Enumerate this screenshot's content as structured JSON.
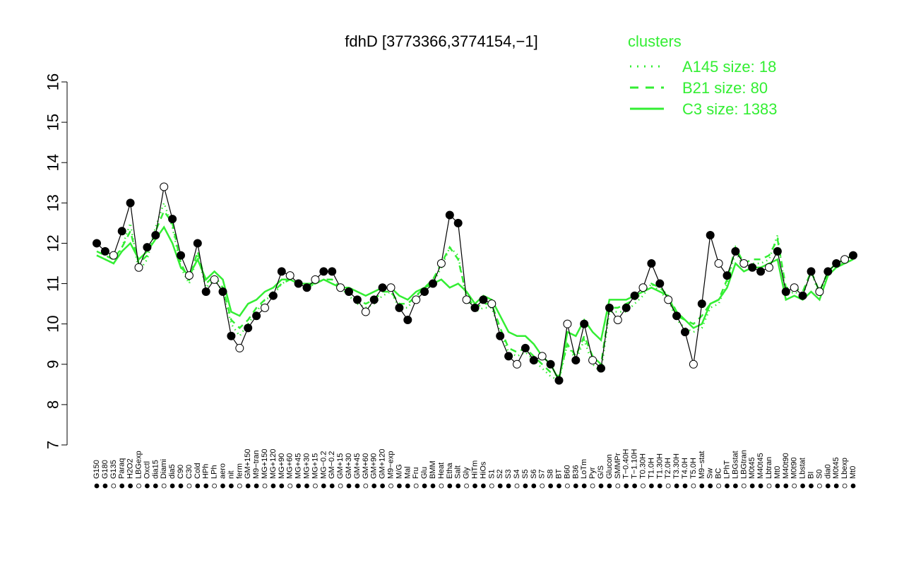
{
  "chart_data": {
    "type": "line",
    "title": "fdhD [3773366,3774154,−1]",
    "ylim": [
      7,
      16
    ],
    "yticks": [
      7,
      8,
      9,
      10,
      11,
      12,
      13,
      14,
      15,
      16
    ],
    "xlabels": [
      "G150",
      "G180",
      "G135",
      "Paraq",
      "H2O2",
      "LBGexp",
      "Oxctl",
      "dia15",
      "Diami",
      "dia5",
      "C90",
      "C30",
      "Cold",
      "HPh",
      "LPh",
      "aero",
      "nit",
      "ferm",
      "GM+150",
      "M9−tran",
      "MG+150",
      "MG+120",
      "MG+90",
      "MG+60",
      "MG+45",
      "MG+30",
      "MG+15",
      "MG−0.2",
      "GM−0.2",
      "GM+15",
      "GM+30",
      "GM+45",
      "GM+60",
      "GM+90",
      "GM+120",
      "M9−exp",
      "M/G",
      "Mal",
      "Fru",
      "Glu",
      "BMM",
      "Heat",
      "Etha",
      "Salt",
      "Gly",
      "HiTm",
      "HiOs",
      "S1",
      "S2",
      "S3",
      "S4",
      "S5",
      "S6",
      "S7",
      "S8",
      "BT",
      "B60",
      "B36",
      "LoTm",
      "Pyr",
      "G/S",
      "Glucon",
      "SMMPr",
      "T−0.40H",
      "T−1.10H",
      "T0.30H",
      "T1.0H",
      "T1.30H",
      "T2.0H",
      "T3.30H",
      "T4.0H",
      "T5.0H",
      "M9−stat",
      "Sw",
      "BC",
      "LPhT",
      "LBGstat",
      "LBGtran",
      "M0t45",
      "M40t45",
      "Lbtran",
      "Mt0",
      "M40t90",
      "M0t90",
      "Lbstat",
      "BI",
      "S0",
      "dia0",
      "M0t45",
      "Lbexp",
      "Mt0"
    ],
    "series": [
      {
        "name": "A145 size: 18",
        "style": "dotted",
        "color": "#33ee33",
        "y": [
          11.7,
          11.6,
          11.5,
          11.9,
          12.5,
          11.3,
          11.6,
          12.4,
          13.0,
          12.4,
          11.4,
          11.0,
          11.7,
          10.9,
          11.1,
          10.8,
          10.0,
          9.7,
          10.0,
          10.3,
          10.6,
          10.7,
          11.0,
          11.1,
          11.0,
          10.9,
          11.0,
          11.1,
          11.0,
          10.9,
          10.7,
          10.5,
          10.4,
          10.5,
          10.7,
          10.8,
          10.4,
          10.4,
          10.7,
          10.8,
          11.0,
          11.4,
          11.9,
          11.7,
          10.6,
          10.3,
          10.4,
          10.4,
          9.8,
          9.3,
          9.2,
          9.3,
          9.1,
          8.9,
          8.7,
          8.6,
          9.5,
          9.1,
          9.6,
          9.0,
          8.8,
          10.3,
          10.3,
          10.3,
          10.5,
          10.7,
          11.0,
          10.8,
          10.6,
          10.1,
          9.9,
          9.8,
          9.9,
          10.4,
          10.5,
          11.0,
          11.8,
          11.4,
          11.5,
          11.5,
          11.6,
          12.2,
          10.7,
          10.8,
          10.7,
          11.3,
          10.7,
          11.3,
          11.5,
          11.5,
          11.6
        ]
      },
      {
        "name": "B21 size: 80",
        "style": "dashed",
        "color": "#33ee33",
        "y": [
          11.8,
          11.7,
          11.6,
          11.9,
          12.3,
          11.5,
          11.7,
          12.3,
          12.8,
          12.5,
          11.5,
          11.1,
          11.8,
          11.0,
          11.2,
          10.9,
          10.1,
          9.9,
          10.1,
          10.4,
          10.6,
          10.8,
          11.0,
          11.1,
          11.0,
          10.9,
          11.0,
          11.1,
          11.1,
          10.9,
          10.8,
          10.6,
          10.5,
          10.6,
          10.8,
          10.8,
          10.5,
          10.5,
          10.7,
          10.9,
          11.1,
          11.5,
          11.9,
          11.6,
          10.7,
          10.4,
          10.5,
          10.5,
          9.9,
          9.4,
          9.3,
          9.4,
          9.2,
          9.0,
          8.8,
          8.7,
          9.5,
          9.2,
          9.7,
          9.2,
          9.0,
          10.4,
          10.4,
          10.5,
          10.6,
          10.8,
          11.0,
          10.9,
          10.7,
          10.3,
          10.1,
          10.0,
          10.2,
          10.5,
          10.6,
          11.1,
          11.9,
          11.5,
          11.6,
          11.6,
          11.7,
          12.1,
          10.9,
          10.9,
          10.8,
          11.3,
          10.8,
          11.3,
          11.5,
          11.6,
          11.7
        ]
      },
      {
        "name": "C3 size: 1383",
        "style": "solid",
        "color": "#33ee33",
        "y": [
          11.7,
          11.6,
          11.5,
          11.8,
          12.0,
          11.6,
          11.8,
          12.1,
          12.4,
          12.0,
          11.4,
          11.2,
          11.6,
          11.1,
          11.3,
          11.1,
          10.3,
          10.2,
          10.5,
          10.6,
          10.8,
          10.9,
          11.1,
          11.1,
          11.0,
          11.0,
          11.0,
          11.1,
          11.0,
          10.9,
          10.9,
          10.8,
          10.7,
          10.8,
          10.9,
          10.9,
          10.7,
          10.6,
          10.8,
          10.9,
          11.0,
          11.1,
          10.9,
          11.0,
          10.8,
          10.5,
          10.7,
          10.6,
          10.2,
          9.8,
          9.7,
          9.7,
          9.5,
          9.2,
          9.0,
          8.6,
          9.8,
          9.7,
          10.1,
          9.8,
          9.6,
          10.6,
          10.6,
          10.6,
          10.7,
          10.8,
          10.9,
          10.8,
          10.7,
          10.2,
          10.1,
          9.9,
          10.0,
          10.5,
          10.6,
          10.9,
          11.5,
          11.3,
          11.4,
          11.4,
          11.5,
          11.6,
          10.6,
          10.7,
          10.6,
          10.8,
          10.6,
          11.2,
          11.4,
          11.5,
          11.6
        ]
      }
    ],
    "points": [
      12.0,
      11.8,
      11.7,
      12.3,
      13.0,
      11.4,
      11.9,
      12.2,
      13.4,
      12.6,
      11.7,
      11.2,
      12.0,
      10.8,
      11.1,
      10.8,
      9.7,
      9.4,
      9.9,
      10.2,
      10.4,
      10.7,
      11.3,
      11.2,
      11.0,
      10.9,
      11.1,
      11.3,
      11.3,
      10.9,
      10.8,
      10.6,
      10.3,
      10.6,
      10.9,
      10.9,
      10.4,
      10.1,
      10.6,
      10.8,
      11.0,
      11.5,
      12.7,
      12.5,
      10.6,
      10.4,
      10.6,
      10.5,
      9.7,
      9.2,
      9.0,
      9.4,
      9.1,
      9.2,
      9.0,
      8.6,
      10.0,
      9.1,
      10.0,
      9.1,
      8.9,
      10.4,
      10.1,
      10.4,
      10.7,
      10.9,
      11.5,
      11.0,
      10.6,
      10.2,
      9.8,
      9.0,
      10.5,
      12.2,
      11.5,
      11.2,
      11.8,
      11.5,
      11.4,
      11.3,
      11.4,
      11.8,
      10.8,
      10.9,
      10.7,
      11.3,
      10.8,
      11.3,
      11.5,
      11.6,
      11.7
    ],
    "legend": {
      "title": "clusters",
      "entries": [
        {
          "label": "A145 size: 18",
          "style": "dotted"
        },
        {
          "label": "B21 size: 80",
          "style": "dashed"
        },
        {
          "label": "C3 size: 1383",
          "style": "solid"
        }
      ],
      "position": "top-right"
    }
  }
}
